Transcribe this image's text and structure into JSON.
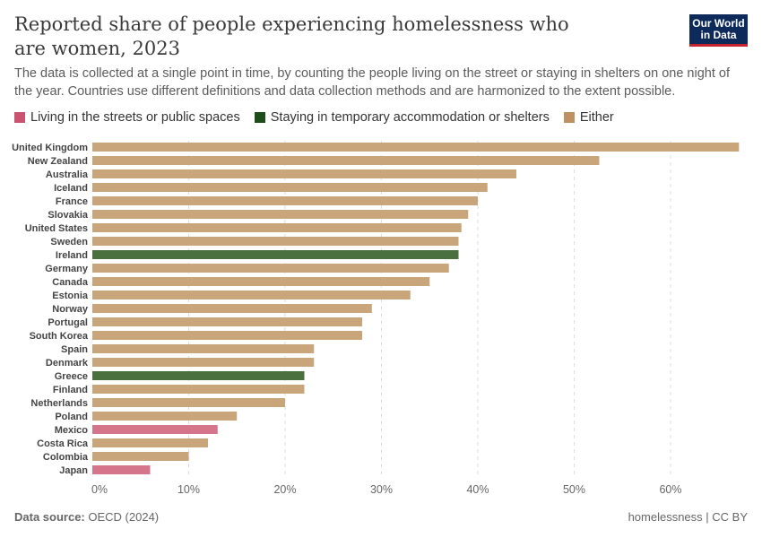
{
  "header": {
    "title": "Reported share of people experiencing homelessness who are women, 2023",
    "subtitle": "The data is collected at a single point in time, by counting the people living on the street or staying in shelters on one night of the year. Countries use different definitions and data collection methods and are harmonized to the extent possible.",
    "logo": "Our World in Data"
  },
  "footer": {
    "source_label": "Data source:",
    "source": "OECD (2024)",
    "right": "homelessness | CC BY"
  },
  "chart_data": {
    "type": "bar",
    "orientation": "horizontal",
    "title": "Reported share of people experiencing homelessness who are women, 2023",
    "xlim": [
      0,
      67
    ],
    "grid": true,
    "legend_position": "top-left",
    "x_ticks": [
      "0%",
      "10%",
      "20%",
      "30%",
      "40%",
      "50%",
      "60%"
    ],
    "legend": [
      {
        "name": "Living in the streets or public spaces",
        "color": "#c95470"
      },
      {
        "name": "Staying in temporary accommodation or shelters",
        "color": "#1f4d1a"
      },
      {
        "name": "Either",
        "color": "#be9162"
      }
    ],
    "series_colors": {
      "streets": "#d4758b",
      "shelters": "#4a7040",
      "either": "#c9a57c"
    },
    "categories": [
      "United Kingdom",
      "New Zealand",
      "Australia",
      "Iceland",
      "France",
      "Slovakia",
      "United States",
      "Sweden",
      "Ireland",
      "Germany",
      "Canada",
      "Estonia",
      "Norway",
      "Portugal",
      "South Korea",
      "Spain",
      "Denmark",
      "Greece",
      "Finland",
      "Netherlands",
      "Poland",
      "Mexico",
      "Costa Rica",
      "Colombia",
      "Japan"
    ],
    "values": [
      67.1,
      52.6,
      44,
      41,
      40,
      39,
      38.3,
      38,
      38,
      37,
      35,
      33,
      29,
      28,
      28,
      23,
      23,
      22,
      22,
      20,
      15,
      13,
      12,
      10,
      6
    ],
    "groups": [
      "either",
      "either",
      "either",
      "either",
      "either",
      "either",
      "either",
      "either",
      "shelters",
      "either",
      "either",
      "either",
      "either",
      "either",
      "either",
      "either",
      "either",
      "shelters",
      "either",
      "either",
      "either",
      "streets",
      "either",
      "either",
      "streets"
    ]
  }
}
